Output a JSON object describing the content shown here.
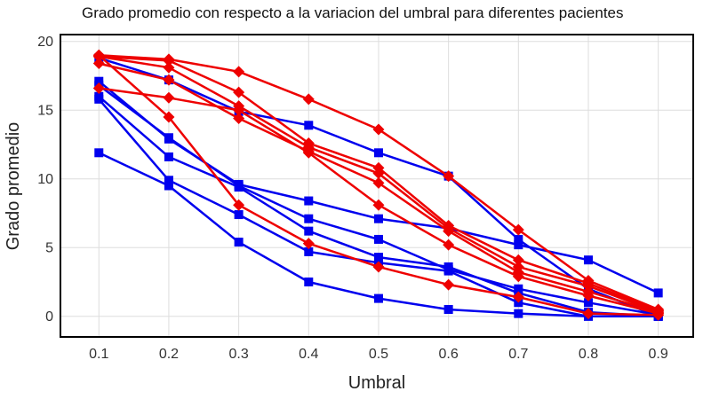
{
  "chart_data": {
    "type": "line",
    "title": "Grado promedio con respecto a la variacion del umbral para diferentes pacientes",
    "xlabel": "Umbral",
    "ylabel": "Grado promedio",
    "x": [
      0.1,
      0.2,
      0.3,
      0.4,
      0.5,
      0.6,
      0.7,
      0.8,
      0.9
    ],
    "x_tick_labels": [
      "0.1",
      "0.2",
      "0.3",
      "0.4",
      "0.5",
      "0.6",
      "0.7",
      "0.8",
      "0.9"
    ],
    "y_ticks": [
      0,
      5,
      10,
      15,
      20
    ],
    "y_tick_labels": [
      "0",
      "5",
      "10",
      "15",
      "20"
    ],
    "xlim": [
      0.045,
      0.95
    ],
    "ylim": [
      -1.5,
      20.5
    ],
    "grid": true,
    "legend": "none",
    "colors": {
      "blue": "#0000ee",
      "red": "#ee0000",
      "grid": "#dddddd",
      "frame": "#000000"
    },
    "series": [
      {
        "group": "blue",
        "marker": "square",
        "values": [
          17.1,
          12.9,
          9.6,
          8.4,
          7.1,
          6.4,
          5.2,
          4.1,
          1.7
        ]
      },
      {
        "group": "blue",
        "marker": "square",
        "values": [
          16.8,
          13.0,
          9.5,
          7.1,
          5.6,
          3.4,
          2.0,
          1.0,
          0.1
        ]
      },
      {
        "group": "blue",
        "marker": "square",
        "values": [
          16.0,
          11.6,
          9.4,
          6.2,
          4.3,
          3.6,
          1.7,
          0.3,
          0.0
        ]
      },
      {
        "group": "blue",
        "marker": "square",
        "values": [
          15.8,
          9.9,
          7.4,
          4.7,
          3.9,
          3.3,
          1.0,
          0.0,
          0.0
        ]
      },
      {
        "group": "blue",
        "marker": "square",
        "values": [
          11.9,
          9.5,
          5.4,
          2.5,
          1.3,
          0.5,
          0.2,
          0.0,
          0.0
        ]
      },
      {
        "group": "blue",
        "marker": "square",
        "values": [
          18.8,
          17.2,
          14.9,
          13.9,
          11.9,
          10.2,
          5.6,
          2.0,
          0.0
        ]
      },
      {
        "group": "red",
        "marker": "diamond",
        "values": [
          19.0,
          18.7,
          17.8,
          15.8,
          13.6,
          10.2,
          6.3,
          2.6,
          0.5
        ]
      },
      {
        "group": "red",
        "marker": "diamond",
        "values": [
          18.9,
          18.6,
          16.3,
          12.6,
          10.8,
          6.6,
          4.1,
          2.4,
          0.4
        ]
      },
      {
        "group": "red",
        "marker": "diamond",
        "values": [
          18.9,
          18.1,
          15.3,
          12.3,
          10.4,
          6.4,
          3.6,
          2.2,
          0.3
        ]
      },
      {
        "group": "red",
        "marker": "diamond",
        "values": [
          18.4,
          17.2,
          14.4,
          12.0,
          9.7,
          6.2,
          3.2,
          1.8,
          0.3
        ]
      },
      {
        "group": "red",
        "marker": "diamond",
        "values": [
          16.6,
          15.9,
          15.0,
          11.9,
          8.1,
          5.2,
          2.9,
          1.5,
          0.2
        ]
      },
      {
        "group": "red",
        "marker": "diamond",
        "values": [
          19.0,
          14.5,
          8.1,
          5.3,
          3.6,
          2.3,
          1.4,
          0.2,
          0.1
        ]
      }
    ]
  }
}
